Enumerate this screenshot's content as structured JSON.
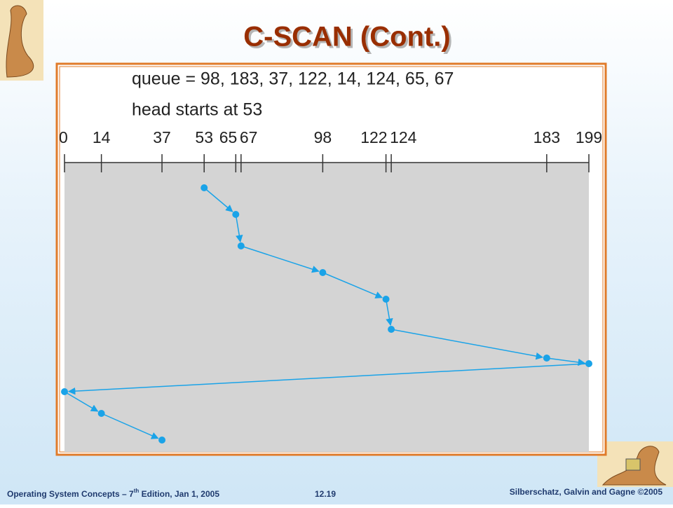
{
  "header": {
    "title": "C-SCAN (Cont.)"
  },
  "figure": {
    "queue_text": "queue = 98, 183, 37, 122, 14, 124, 65, 67",
    "head_text": "head starts at 53",
    "range": [
      0,
      199
    ],
    "ticks": [
      0,
      14,
      37,
      53,
      65,
      67,
      98,
      122,
      124,
      183,
      199
    ],
    "path": [
      53,
      65,
      67,
      98,
      122,
      124,
      183,
      199,
      0,
      14,
      37
    ],
    "color": "#1aa3e8"
  },
  "footer": {
    "left_main": "Operating System Concepts – 7",
    "left_sup": "th",
    "left_rest": " Edition, Jan 1, 2005",
    "page": "12.19",
    "right": "Silberschatz, Galvin and Gagne ©2005"
  }
}
